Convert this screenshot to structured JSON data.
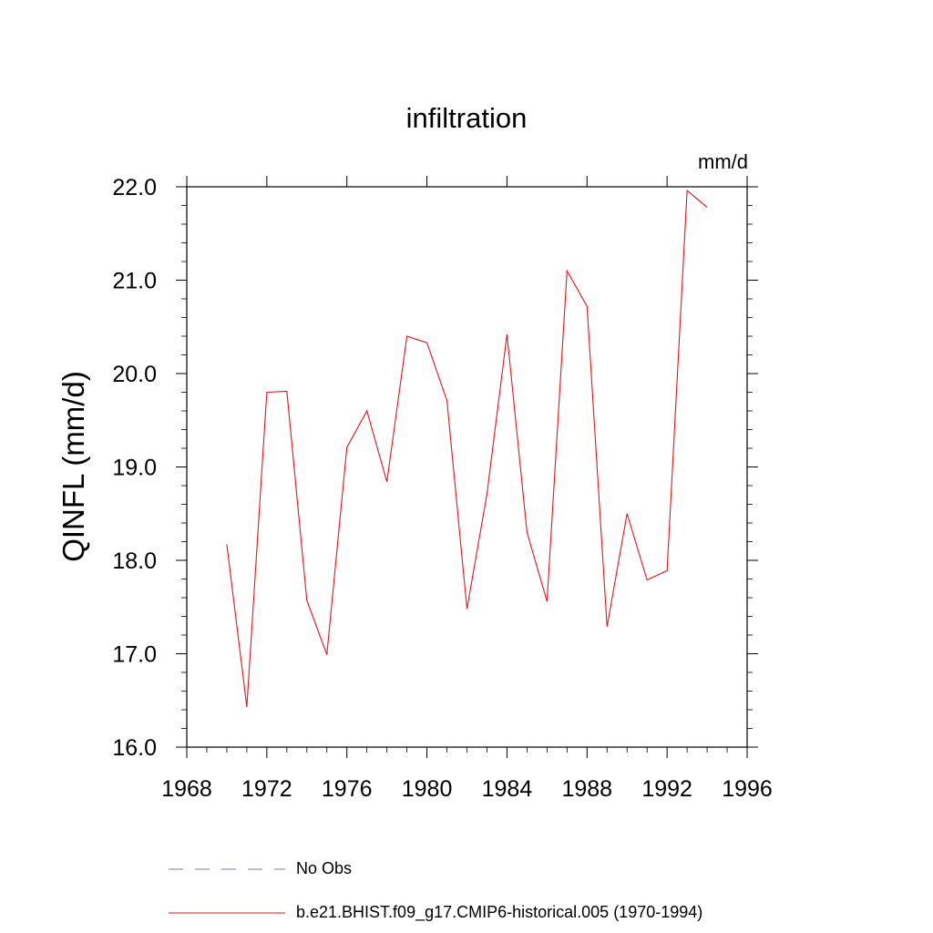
{
  "chart_data": {
    "type": "line",
    "title": "infiltration",
    "units_label": "mm/d",
    "ylabel": "QINFL  (mm/d)",
    "xlabel": "",
    "xlim": [
      1968,
      1996
    ],
    "ylim": [
      16.0,
      22.0
    ],
    "x_ticks": [
      1968,
      1972,
      1976,
      1980,
      1984,
      1988,
      1992,
      1996
    ],
    "y_ticks": [
      "16.0",
      "17.0",
      "18.0",
      "19.0",
      "20.0",
      "21.0",
      "22.0"
    ],
    "grid": false,
    "series": [
      {
        "name": "b.e21.BHIST.f09_g17.CMIP6-historical.005 (1970-1994)",
        "color": "#e8141e",
        "style": "solid",
        "x": [
          1970,
          1971,
          1972,
          1973,
          1974,
          1975,
          1976,
          1977,
          1978,
          1979,
          1980,
          1981,
          1982,
          1983,
          1984,
          1985,
          1986,
          1987,
          1988,
          1989,
          1990,
          1991,
          1992,
          1993,
          1994
        ],
        "values": [
          18.17,
          16.43,
          19.8,
          19.81,
          17.57,
          16.99,
          19.21,
          19.6,
          18.84,
          20.4,
          20.33,
          19.71,
          17.48,
          18.71,
          20.42,
          18.3,
          17.56,
          21.1,
          20.72,
          17.29,
          18.5,
          17.79,
          17.89,
          21.96,
          21.78
        ]
      }
    ],
    "legend": [
      {
        "label": "No Obs",
        "color": "#7a7ab8",
        "style": "dashed"
      },
      {
        "label": "b.e21.BHIST.f09_g17.CMIP6-historical.005 (1970-1994)",
        "color": "#e8141e",
        "style": "solid"
      }
    ]
  }
}
